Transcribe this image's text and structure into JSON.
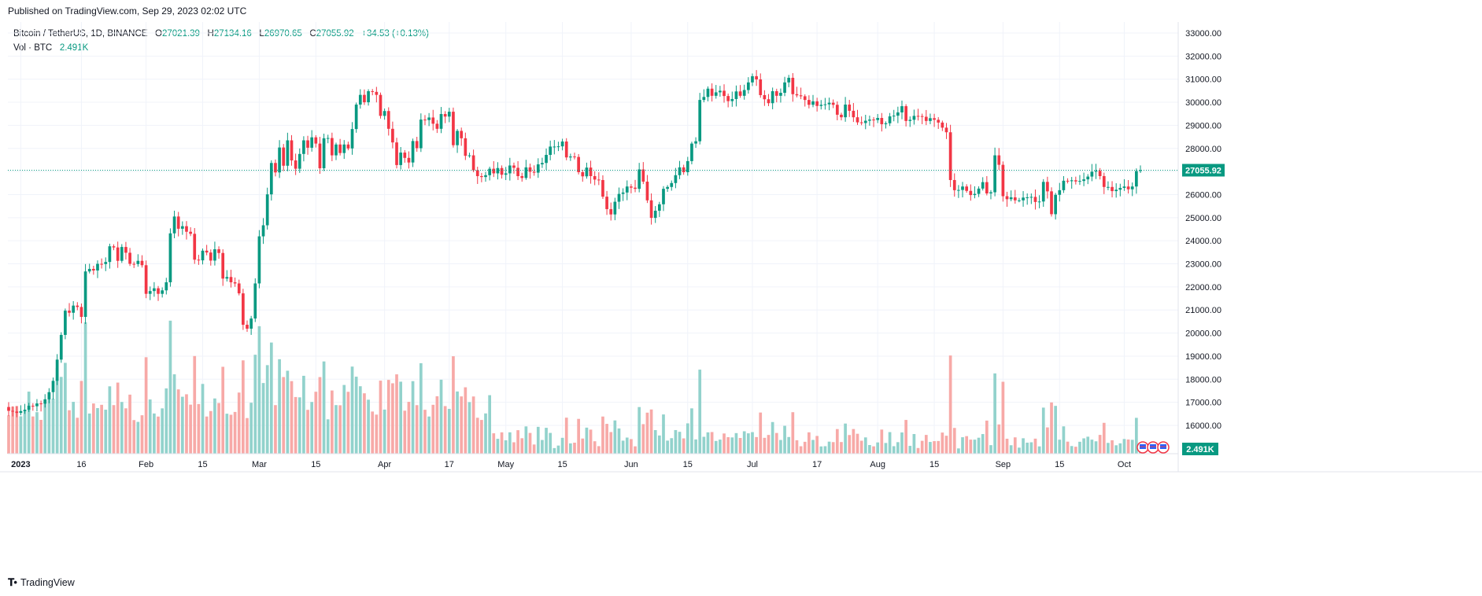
{
  "header": {
    "published": "Published on TradingView.com, Sep 29, 2023 02:02 UTC"
  },
  "legend": {
    "symbol": "Bitcoin / TetherUS, 1D, BINANCE",
    "open_label": "O",
    "open": "27021.39",
    "high_label": "H",
    "high": "27134.16",
    "low_label": "L",
    "low": "26970.65",
    "close_label": "C",
    "close": "27055.92",
    "change": "+34.53 (+0.13%)",
    "vol_label": "Vol · BTC",
    "vol_value": "2.491K"
  },
  "footer": {
    "brand": "TradingView"
  },
  "colors": {
    "up": "#089981",
    "down": "#f23645",
    "vol_up": "#92d2cc",
    "vol_down": "#f7a9a7",
    "grid": "#f0f3fa",
    "axis_text": "#131722"
  },
  "chart_data": {
    "type": "candlestick",
    "symbol": "Bitcoin / TetherUS",
    "interval": "1D",
    "exchange": "BINANCE",
    "y_axis": {
      "ticks": [
        "16000.00",
        "17000.00",
        "18000.00",
        "19000.00",
        "20000.00",
        "21000.00",
        "22000.00",
        "23000.00",
        "24000.00",
        "25000.00",
        "26000.00",
        "27000.00",
        "28000.00",
        "29000.00",
        "30000.00",
        "31000.00",
        "32000.00",
        "33000.00"
      ],
      "range": [
        15000,
        33500
      ]
    },
    "x_axis": {
      "ticks": [
        "2023",
        "16",
        "Feb",
        "15",
        "Mar",
        "15",
        "Apr",
        "17",
        "May",
        "15",
        "Jun",
        "15",
        "Jul",
        "17",
        "Aug",
        "15",
        "Sep",
        "15",
        "Oct"
      ]
    },
    "last_price": "27055.92",
    "last_volume": "2.491K",
    "close_series_start_date": "2022-12-29",
    "close_series_interval": "1D",
    "close_series": [
      16630,
      16600,
      16540,
      16620,
      16680,
      16850,
      16830,
      16950,
      16940,
      17130,
      17440,
      17930,
      18850,
      19920,
      20970,
      20880,
      21190,
      21130,
      20700,
      22670,
      22780,
      22710,
      23000,
      22990,
      23080,
      23760,
      23710,
      23130,
      23730,
      23480,
      23000,
      22990,
      23130,
      22940,
      21700,
      21820,
      21940,
      21700,
      21850,
      22200,
      24320,
      25050,
      24520,
      24630,
      24390,
      24300,
      23180,
      23150,
      23570,
      23490,
      23140,
      23630,
      23470,
      22360,
      22430,
      22200,
      22150,
      21720,
      20360,
      20190,
      20630,
      22150,
      24190,
      24670,
      26010,
      27370,
      26960,
      28040,
      27250,
      28350,
      27480,
      27120,
      27760,
      28350,
      28030,
      28480,
      28210,
      27140,
      28440,
      28450,
      27700,
      28170,
      27800,
      28170,
      28000,
      28840,
      29900,
      30320,
      30000,
      30480,
      30450,
      30320,
      29410,
      29620,
      28850,
      28260,
      27280,
      27820,
      27590,
      27390,
      28320,
      28010,
      29250,
      29230,
      29340,
      29070,
      28850,
      29490,
      29380,
      29590,
      28140,
      28760,
      28440,
      27680,
      27700,
      27050,
      26800,
      26760,
      26840,
      27120,
      26920,
      27150,
      26860,
      26920,
      27260,
      27160,
      26800,
      26720,
      27180,
      26990,
      26950,
      27310,
      27370,
      27720,
      28080,
      28080,
      28090,
      28300,
      27610,
      27650,
      27630,
      26970,
      26790,
      27170,
      26800,
      26650,
      26630,
      25910,
      25370,
      25140,
      25690,
      26030,
      26090,
      26350,
      26300,
      26250,
      27090,
      26560,
      25750,
      24990,
      25300,
      25580,
      26250,
      26330,
      26500,
      26840,
      27180,
      26970,
      27450,
      28210,
      28310,
      30100,
      30230,
      30590,
      30280,
      30430,
      30500,
      30270,
      30050,
      30140,
      30470,
      30280,
      30530,
      30860,
      31130,
      30990,
      30310,
      30130,
      29960,
      30480,
      30280,
      30410,
      30860,
      31060,
      30350,
      30300,
      30260,
      30100,
      29890,
      30040,
      29840,
      29890,
      29910,
      29980,
      29890,
      29460,
      29350,
      29900,
      29630,
      29350,
      29130,
      29100,
      29200,
      29250,
      29230,
      29320,
      29050,
      29090,
      29390,
      29420,
      29560,
      29830,
      29190,
      29240,
      29410,
      29400,
      29370,
      29190,
      29310,
      29240,
      29120,
      28900,
      28700,
      26630,
      26190,
      26200,
      26350,
      26160,
      25980,
      26030,
      26260,
      26540,
      26050,
      26100,
      27700,
      27290,
      25930,
      25800,
      25880,
      25750,
      25750,
      25870,
      25880,
      25900,
      25680,
      25700,
      26550,
      26140,
      25150,
      25990,
      26190,
      26600,
      26580,
      26620,
      26570,
      26590,
      26660,
      26780,
      26990,
      27030,
      26800,
      26330,
      26330,
      26150,
      26210,
      26290,
      26350,
      26230,
      26350,
      27020,
      27060
    ]
  }
}
